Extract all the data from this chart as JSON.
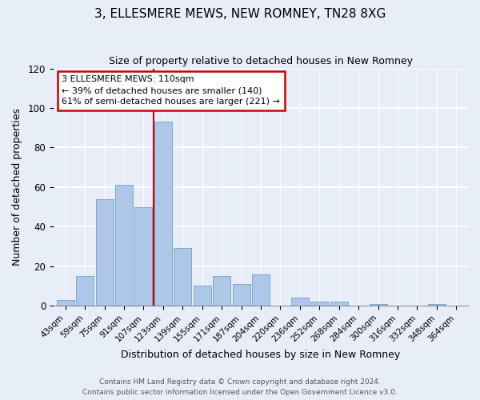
{
  "title": "3, ELLESMERE MEWS, NEW ROMNEY, TN28 8XG",
  "subtitle": "Size of property relative to detached houses in New Romney",
  "xlabel": "Distribution of detached houses by size in New Romney",
  "ylabel": "Number of detached properties",
  "categories": [
    "43sqm",
    "59sqm",
    "75sqm",
    "91sqm",
    "107sqm",
    "123sqm",
    "139sqm",
    "155sqm",
    "171sqm",
    "187sqm",
    "204sqm",
    "220sqm",
    "236sqm",
    "252sqm",
    "268sqm",
    "284sqm",
    "300sqm",
    "316sqm",
    "332sqm",
    "348sqm",
    "364sqm"
  ],
  "values": [
    3,
    15,
    54,
    61,
    50,
    93,
    29,
    10,
    15,
    11,
    16,
    0,
    4,
    2,
    2,
    0,
    1,
    0,
    0,
    1,
    0
  ],
  "bar_color": "#aec6e8",
  "bar_edge_color": "#7aabcc",
  "property_line_x": 4.5,
  "property_line_color": "#cc0000",
  "annotation_text": "3 ELLESMERE MEWS: 110sqm\n← 39% of detached houses are smaller (140)\n61% of semi-detached houses are larger (221) →",
  "annotation_box_color": "#ffffff",
  "annotation_box_edge_color": "#cc0000",
  "ylim": [
    0,
    120
  ],
  "yticks": [
    0,
    20,
    40,
    60,
    80,
    100,
    120
  ],
  "footer_text": "Contains HM Land Registry data © Crown copyright and database right 2024.\nContains public sector information licensed under the Open Government Licence v3.0.",
  "background_color": "#e8eef8"
}
